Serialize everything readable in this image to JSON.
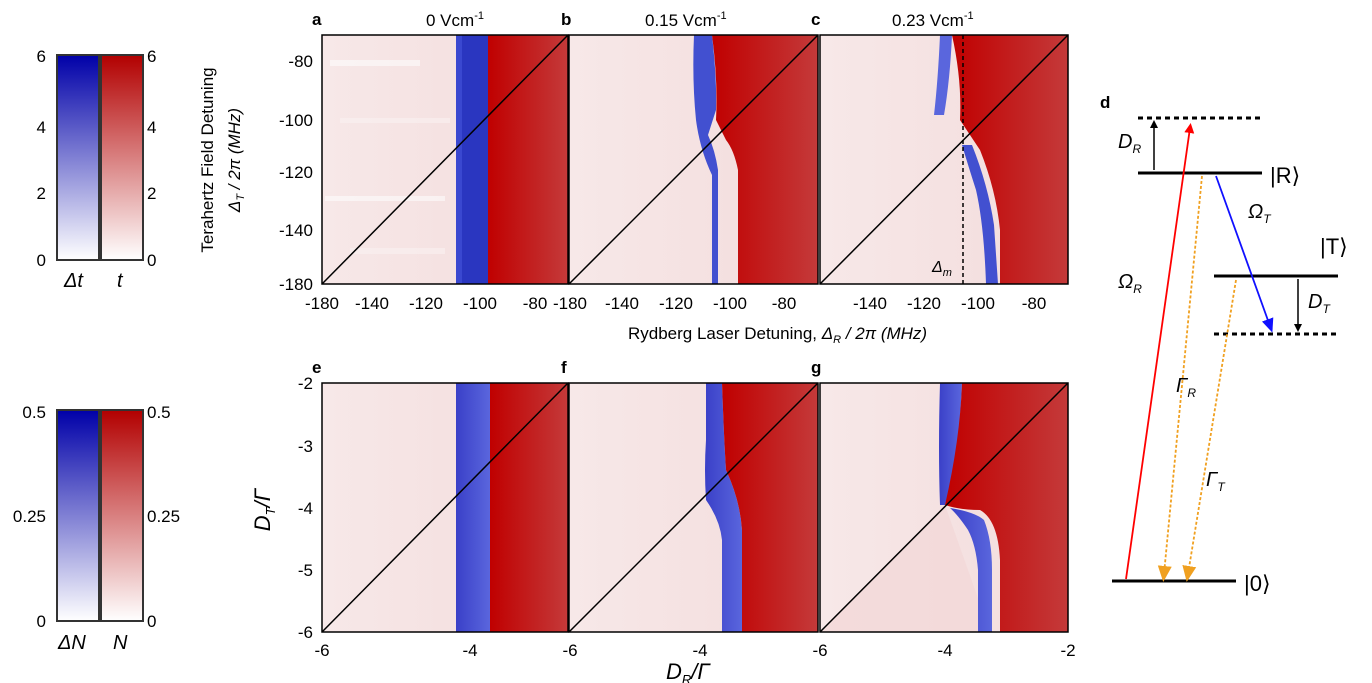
{
  "figure": {
    "panel_letters": [
      "a",
      "b",
      "c",
      "d",
      "e",
      "f",
      "g"
    ],
    "field_labels": [
      "0 Vcm",
      "0.15 Vcm",
      "0.23 Vcm"
    ],
    "field_unit_sup": "-1",
    "exp_ylabel_text": "Terahertz Field Detuning",
    "exp_ylabel_sym": "Δ",
    "exp_ylabel_sub": "T",
    "exp_ylabel_tail": " / 2π (MHz)",
    "exp_xlabel_text": "Rydberg Laser Detuning, ",
    "exp_xlabel_sym": "Δ",
    "exp_xlabel_sub": "R",
    "exp_xlabel_tail": " / 2π (MHz)",
    "exp_yticks": [
      "-80",
      "-100",
      "-120",
      "-140",
      "-160",
      "-180"
    ],
    "exp_xticks_first": [
      "-180",
      "-160",
      "-140",
      "-120",
      "-100",
      "-80"
    ],
    "exp_xticks_other": [
      "-140",
      "-120",
      "-100",
      "-80"
    ],
    "delta_m_sym": "Δ",
    "delta_m_sub": "m",
    "sim_ylabel_main": "D",
    "sim_ylabel_sub": "T",
    "sim_ylabel_tail": "/Γ",
    "sim_xlabel_main": "D",
    "sim_xlabel_sub": "R",
    "sim_xlabel_tail": "/Γ",
    "sim_yticks": [
      "-2",
      "-3",
      "-4",
      "-5",
      "-6"
    ],
    "sim_xticks_first": [
      "-6",
      "-4"
    ],
    "sim_xticks_other": [
      "-6",
      "-4",
      "-2"
    ]
  },
  "colorbars": {
    "top": {
      "ticks_left": [
        "6",
        "4",
        "2",
        "0"
      ],
      "ticks_right": [
        "6",
        "4",
        "2",
        "0"
      ],
      "label_left": "Δt",
      "label_right": "t"
    },
    "bottom": {
      "ticks_left": [
        "0.5",
        "0.25",
        "0"
      ],
      "ticks_right": [
        "0.5",
        "0.25",
        "0"
      ],
      "label_left": "ΔN",
      "label_right": "N"
    }
  },
  "level_diagram": {
    "state_R": "R",
    "state_T": "T",
    "state_0": "0",
    "D_R": "D",
    "D_R_sub": "R",
    "D_T": "D",
    "D_T_sub": "T",
    "Omega_R": "Ω",
    "Omega_R_sub": "R",
    "Omega_T": "Ω",
    "Omega_T_sub": "T",
    "Gamma_R": "Γ",
    "Gamma_R_sub": "R",
    "Gamma_T": "Γ",
    "Gamma_T_sub": "T"
  },
  "colors": {
    "red": "#c01818",
    "blue": "#2f3fc4",
    "pale": "#f6e4e4",
    "red_arrow": "#ff0000",
    "blue_arrow": "#1010ff",
    "decay": "#f0a020"
  }
}
